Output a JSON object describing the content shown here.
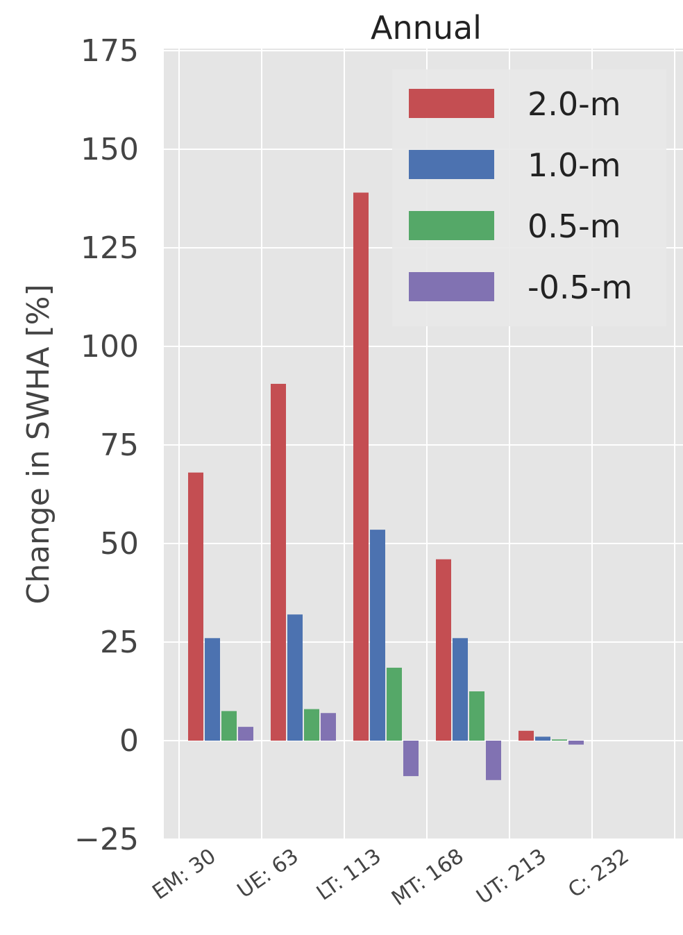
{
  "chart_data": {
    "type": "bar",
    "title": "Annual",
    "xlabel": "",
    "ylabel": "Change in SWHA [%]",
    "ylim": [
      -25,
      175
    ],
    "yticks": [
      "175",
      "150",
      "125",
      "100",
      "75",
      "50",
      "25",
      "0",
      "−25"
    ],
    "ytick_values": [
      175,
      150,
      125,
      100,
      75,
      50,
      25,
      0,
      -25
    ],
    "categories": [
      "EM: 30",
      "UE: 63",
      "LT: 113",
      "MT: 168",
      "UT: 213",
      "C: 232"
    ],
    "grid": true,
    "legend_position": "top-right",
    "series": [
      {
        "name": "2.0-m",
        "color": "#c44e52",
        "values": [
          68,
          90.5,
          139,
          46,
          2.5,
          0
        ]
      },
      {
        "name": "1.0-m",
        "color": "#4c72b0",
        "values": [
          26,
          32,
          53.5,
          26,
          1,
          0
        ]
      },
      {
        "name": "0.5-m",
        "color": "#55a868",
        "values": [
          7.5,
          8,
          18.5,
          12.5,
          0.3,
          0
        ]
      },
      {
        "name": "-0.5-m",
        "color": "#8172b2",
        "values": [
          3.5,
          7,
          -9,
          -10,
          -1,
          0
        ]
      }
    ]
  }
}
